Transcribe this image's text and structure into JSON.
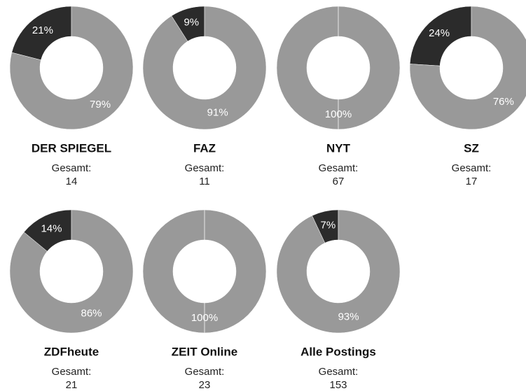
{
  "chart_data": [
    {
      "type": "pie",
      "title": "DER SPIEGEL",
      "total_label": "Gesamt:",
      "total": 14,
      "values": [
        21,
        79
      ],
      "value_labels": [
        "21%",
        "79%"
      ],
      "colors": [
        "#2b2b2b",
        "#999999"
      ]
    },
    {
      "type": "pie",
      "title": "FAZ",
      "total_label": "Gesamt:",
      "total": 11,
      "values": [
        9,
        91
      ],
      "value_labels": [
        "9%",
        "91%"
      ],
      "colors": [
        "#2b2b2b",
        "#999999"
      ]
    },
    {
      "type": "pie",
      "title": "NYT",
      "total_label": "Gesamt:",
      "total": 67,
      "values": [
        100
      ],
      "value_labels": [
        "100%"
      ],
      "colors": [
        "#999999"
      ]
    },
    {
      "type": "pie",
      "title": "SZ",
      "total_label": "Gesamt:",
      "total": 17,
      "values": [
        24,
        76
      ],
      "value_labels": [
        "24%",
        "76%"
      ],
      "colors": [
        "#2b2b2b",
        "#999999"
      ]
    },
    {
      "type": "pie",
      "title": "ZDFheute",
      "total_label": "Gesamt:",
      "total": 21,
      "values": [
        14,
        86
      ],
      "value_labels": [
        "14%",
        "86%"
      ],
      "colors": [
        "#2b2b2b",
        "#999999"
      ]
    },
    {
      "type": "pie",
      "title": "ZEIT Online",
      "total_label": "Gesamt:",
      "total": 23,
      "values": [
        100
      ],
      "value_labels": [
        "100%"
      ],
      "colors": [
        "#999999"
      ]
    },
    {
      "type": "pie",
      "title": "Alle Postings",
      "total_label": "Gesamt:",
      "total": 153,
      "values": [
        7,
        93
      ],
      "value_labels": [
        "7%",
        "93%"
      ],
      "colors": [
        "#2b2b2b",
        "#999999"
      ]
    }
  ]
}
